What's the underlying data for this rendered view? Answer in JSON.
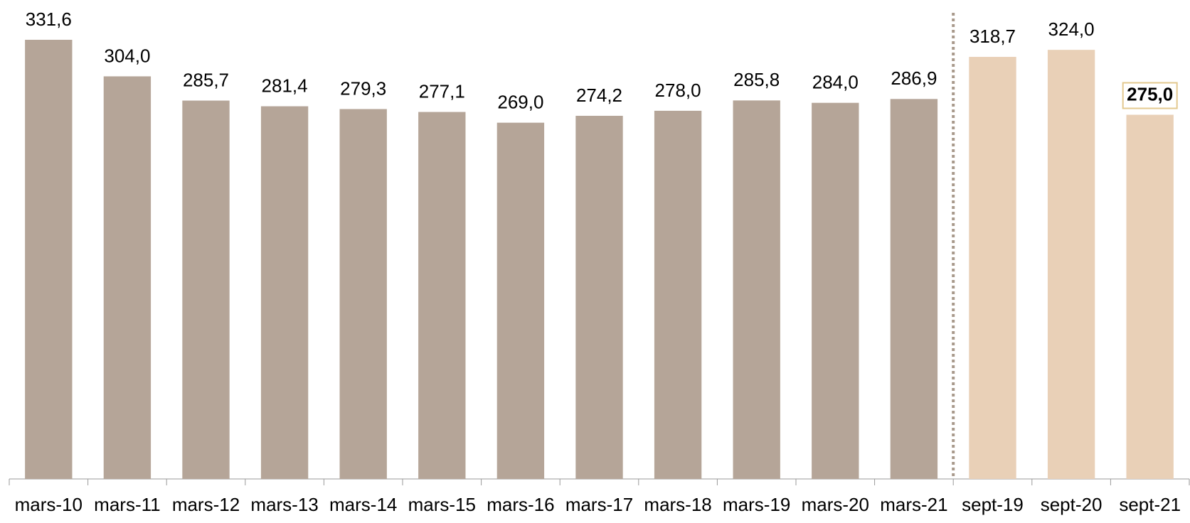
{
  "chart_data": {
    "type": "bar",
    "categories": [
      "mars-10",
      "mars-11",
      "mars-12",
      "mars-13",
      "mars-14",
      "mars-15",
      "mars-16",
      "mars-17",
      "mars-18",
      "mars-19",
      "mars-20",
      "mars-21",
      "sept-19",
      "sept-20",
      "sept-21"
    ],
    "values": [
      331.6,
      304.0,
      285.7,
      281.4,
      279.3,
      277.1,
      269.0,
      274.2,
      278.0,
      285.8,
      284.0,
      286.9,
      318.7,
      324.0,
      275.0
    ],
    "value_labels": [
      "331,6",
      "304,0",
      "285,7",
      "281,4",
      "279,3",
      "277,1",
      "269,0",
      "274,2",
      "278,0",
      "285,8",
      "284,0",
      "286,9",
      "318,7",
      "324,0",
      "275,0"
    ],
    "colors": [
      "#b5a598",
      "#b5a598",
      "#b5a598",
      "#b5a598",
      "#b5a598",
      "#b5a598",
      "#b5a598",
      "#b5a598",
      "#b5a598",
      "#b5a598",
      "#b5a598",
      "#b5a598",
      "#e9d0b7",
      "#e9d0b7",
      "#e9d0b7"
    ],
    "grid": false
  }
}
